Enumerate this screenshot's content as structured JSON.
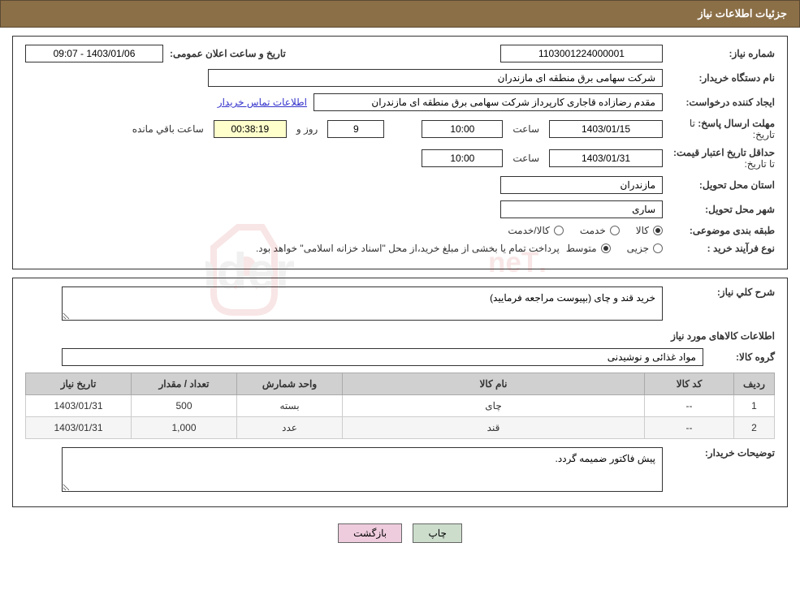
{
  "header": {
    "title": "جزئیات اطلاعات نیاز"
  },
  "form": {
    "need_number_label": "شماره نیاز:",
    "need_number": "1103001224000001",
    "announce_datetime_label": "تاریخ و ساعت اعلان عمومی:",
    "announce_datetime": "1403/01/06 - 09:07",
    "buyer_org_label": "نام دستگاه خریدار:",
    "buyer_org": "شرکت سهامی برق منطقه ای مازندران",
    "requester_label": "ایجاد کننده درخواست:",
    "requester": "مقدم رضازاده قاجاری کارپرداز شرکت سهامی برق منطقه ای مازندران",
    "contact_link": "اطلاعات تماس خریدار",
    "reply_deadline_label": "مهلت ارسال پاسخ:",
    "until_label": "تا تاریخ:",
    "reply_date": "1403/01/15",
    "time_label": "ساعت",
    "reply_time": "10:00",
    "days_value": "9",
    "days_and_label": "روز و",
    "countdown": "00:38:19",
    "remaining_label": "ساعت باقي مانده",
    "validity_label": "حداقل تاریخ اعتبار قیمت:",
    "validity_date": "1403/01/31",
    "validity_time": "10:00",
    "province_label": "استان محل تحویل:",
    "province": "مازندران",
    "city_label": "شهر محل تحویل:",
    "city": "ساری",
    "category_label": "طبقه بندی موضوعی:",
    "category_options": {
      "goods": "کالا",
      "service": "خدمت",
      "goods_service": "کالا/خدمت"
    },
    "process_label": "نوع فرآیند خرید :",
    "process_options": {
      "partial": "جزیی",
      "medium": "متوسط"
    },
    "process_note": "پرداخت تمام یا بخشی از مبلغ خرید،از محل \"اسناد خزانه اسلامی\" خواهد بود."
  },
  "details": {
    "desc_label": "شرح کلي نیاز:",
    "desc_value": "خرید قند و چای (بپیوست مراجعه فرمایید)",
    "items_title": "اطلاعات کالاهای مورد نیاز",
    "group_label": "گروه کالا:",
    "group_value": "مواد غذائی و نوشیدنی",
    "table": {
      "headers": {
        "row": "رديف",
        "code": "کد کالا",
        "name": "نام کالا",
        "unit": "واحد شمارش",
        "qty": "تعداد / مقدار",
        "date": "تاریخ نیاز"
      },
      "rows": [
        {
          "row": "1",
          "code": "--",
          "name": "چای",
          "unit": "بسته",
          "qty": "500",
          "date": "1403/01/31"
        },
        {
          "row": "2",
          "code": "--",
          "name": "قند",
          "unit": "عدد",
          "qty": "1,000",
          "date": "1403/01/31"
        }
      ]
    },
    "buyer_notes_label": "توضیحات خریدار:",
    "buyer_notes_value": "پیش فاکتور ضمیمه گردد."
  },
  "buttons": {
    "print": "چاپ",
    "back": "بازگشت"
  }
}
